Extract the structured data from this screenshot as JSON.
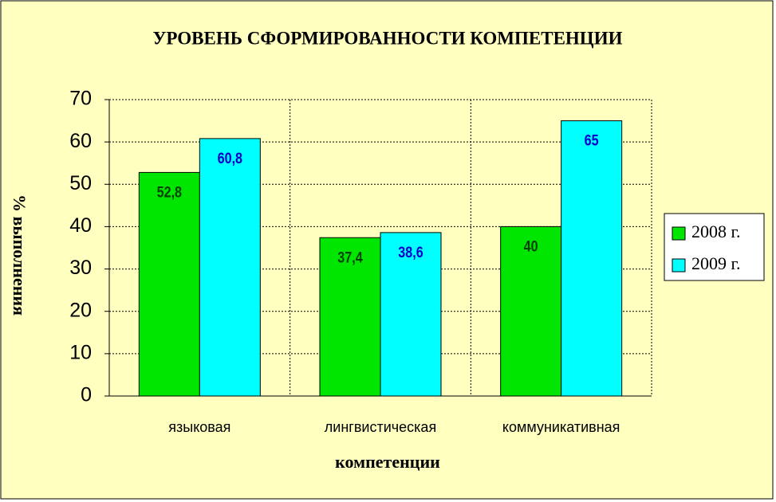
{
  "chart_data": {
    "type": "bar",
    "title": "УРОВЕНЬ СФОРМИРОВАННОСТИ КОМПЕТЕНЦИИ",
    "y_label": "% выполнения",
    "x_label": "компетенции",
    "categories": [
      "языковая",
      "лингвистическая",
      "коммуникативная"
    ],
    "series": [
      {
        "name": "2008 г.",
        "color": "#00e600",
        "label_color": "#004000",
        "values": [
          52.8,
          37.4,
          40
        ],
        "value_labels": [
          "52,8",
          "37,4",
          "40"
        ]
      },
      {
        "name": "2009 г.",
        "color": "#00ffff",
        "label_color": "#0000cc",
        "values": [
          60.8,
          38.6,
          65
        ],
        "value_labels": [
          "60,8",
          "38,6",
          "65"
        ]
      }
    ],
    "ylim": [
      0,
      70
    ],
    "yticks": [
      0,
      10,
      20,
      30,
      40,
      50,
      60,
      70
    ],
    "grid": true,
    "legend": "right"
  }
}
